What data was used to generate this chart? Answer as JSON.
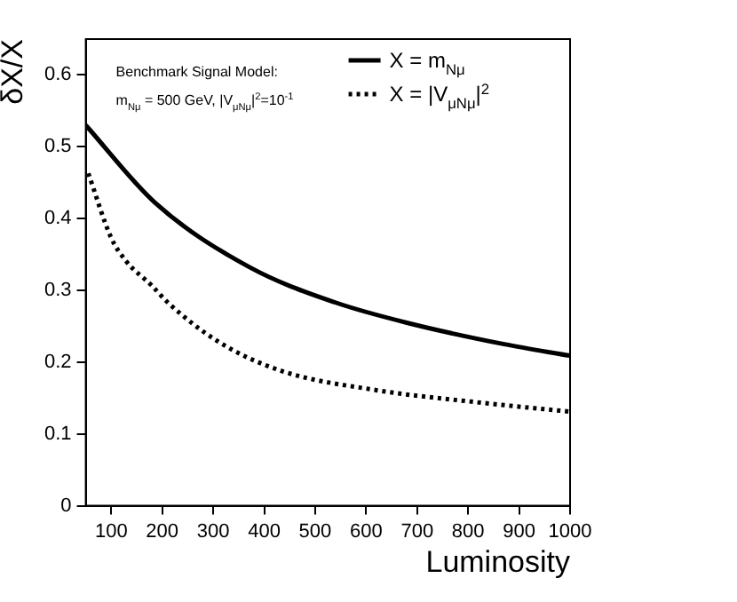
{
  "chart_data": {
    "type": "line",
    "xlabel": "Luminosity",
    "ylabel": "δX/X",
    "xlim": [
      50,
      1000
    ],
    "xticks": [
      100,
      200,
      300,
      400,
      500,
      600,
      700,
      800,
      900,
      1000
    ],
    "ylim": [
      0,
      0.65
    ],
    "yticks": [
      0,
      0.1,
      0.2,
      0.3,
      0.4,
      0.5,
      0.6
    ],
    "grid": false,
    "legend": "top right",
    "marker": "none",
    "annotations": [
      "Benchmark Signal Model:",
      "m$_{Nμ}$ = 500 GeV, |V$_{μNμ}$|$^{2}$=10$^{-1}$"
    ],
    "series": [
      {
        "name": "X = m$_{Nμ}$",
        "color": "#000000",
        "line_style": "solid",
        "x": [
          50,
          186,
          372,
          540,
          685,
          871,
          1000
        ],
        "values": [
          0.53,
          0.422,
          0.332,
          0.283,
          0.254,
          0.225,
          0.209
        ]
      },
      {
        "name": "X = |V$_{μNμ}$|$^{2}$",
        "color": "#000000",
        "line_style": "dotted",
        "x": [
          55,
          100,
          130,
          179,
          211,
          309,
          433,
          620,
          806,
          1000
        ],
        "values": [
          0.463,
          0.373,
          0.34,
          0.307,
          0.283,
          0.229,
          0.188,
          0.161,
          0.145,
          0.131
        ]
      }
    ]
  }
}
